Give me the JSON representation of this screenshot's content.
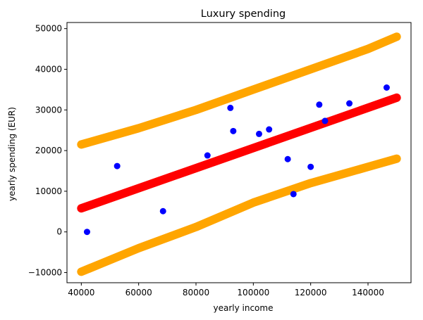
{
  "chart_data": {
    "type": "scatter",
    "title": "Luxury spending",
    "xlabel": "yearly income",
    "ylabel": "yearly spending (EUR)",
    "xlim": [
      35000,
      155000
    ],
    "ylim": [
      -12500,
      51500
    ],
    "xticks": [
      40000,
      60000,
      80000,
      100000,
      120000,
      140000
    ],
    "yticks": [
      -10000,
      0,
      10000,
      20000,
      30000,
      40000,
      50000
    ],
    "grid": false,
    "points": {
      "color": "#0000ff",
      "x": [
        42000,
        52500,
        68500,
        84000,
        92000,
        93000,
        102000,
        105500,
        112000,
        114000,
        120000,
        123000,
        125000,
        133500,
        146500
      ],
      "y": [
        0,
        16200,
        5100,
        18800,
        30500,
        24800,
        24100,
        25200,
        17900,
        9300,
        16000,
        31300,
        27300,
        31600,
        35500
      ]
    },
    "fit_line": {
      "color": "#ff0000",
      "x_start": 40000,
      "x_end": 150000,
      "y_start": 5800,
      "y_end": 33000
    },
    "upper_band": {
      "color": "#ffa500",
      "x": [
        40000,
        60000,
        80000,
        100000,
        120000,
        140000,
        150000
      ],
      "y": [
        21500,
        25500,
        30000,
        35000,
        40000,
        45000,
        48000
      ]
    },
    "lower_band": {
      "color": "#ffa500",
      "x": [
        40000,
        60000,
        80000,
        100000,
        120000,
        140000,
        150000
      ],
      "y": [
        -9800,
        -4000,
        1200,
        7200,
        12000,
        16000,
        18000
      ]
    }
  }
}
